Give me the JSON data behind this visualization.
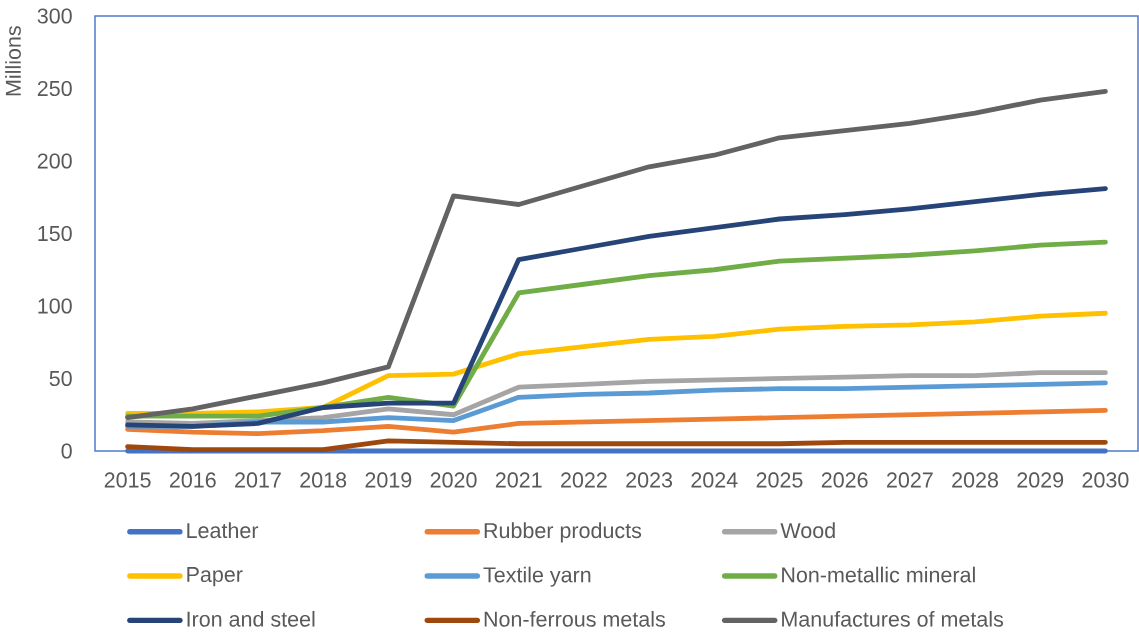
{
  "chart_data": {
    "type": "line",
    "ylabel": "Millions",
    "categories": [
      "2015",
      "2016",
      "2017",
      "2018",
      "2019",
      "2020",
      "2021",
      "2022",
      "2023",
      "2024",
      "2025",
      "2026",
      "2027",
      "2028",
      "2029",
      "2030"
    ],
    "series": [
      {
        "name": "Leather",
        "color": "#4472c4",
        "values": [
          0,
          0,
          0,
          0,
          0,
          0,
          0,
          0,
          0,
          0,
          0,
          0,
          0,
          0,
          0,
          0
        ]
      },
      {
        "name": "Rubber products",
        "color": "#ed7d31",
        "values": [
          15,
          13,
          12,
          14,
          17,
          13,
          19,
          20,
          21,
          22,
          23,
          24,
          25,
          26,
          27,
          28
        ]
      },
      {
        "name": "Wood",
        "color": "#a5a5a5",
        "values": [
          20,
          19,
          21,
          23,
          29,
          25,
          44,
          46,
          48,
          49,
          50,
          51,
          52,
          52,
          54,
          54
        ]
      },
      {
        "name": "Paper",
        "color": "#ffc000",
        "values": [
          26,
          26,
          27,
          30,
          52,
          53,
          67,
          72,
          77,
          79,
          84,
          86,
          87,
          89,
          93,
          95
        ]
      },
      {
        "name": "Textile yarn",
        "color": "#5b9bd5",
        "values": [
          17,
          17,
          20,
          20,
          23,
          21,
          37,
          39,
          40,
          42,
          43,
          43,
          44,
          45,
          46,
          47
        ]
      },
      {
        "name": "Non-metallic mineral",
        "color": "#70ad47",
        "values": [
          24,
          24,
          24,
          30,
          37,
          31,
          109,
          115,
          121,
          125,
          131,
          133,
          135,
          138,
          142,
          144
        ]
      },
      {
        "name": "Iron and steel",
        "color": "#264478",
        "values": [
          18,
          17,
          19,
          30,
          33,
          33,
          132,
          140,
          148,
          154,
          160,
          163,
          167,
          172,
          177,
          181
        ]
      },
      {
        "name": "Non-ferrous metals",
        "color": "#9e480e",
        "values": [
          3,
          1,
          1,
          1,
          7,
          6,
          5,
          5,
          5,
          5,
          5,
          6,
          6,
          6,
          6,
          6
        ]
      },
      {
        "name": "Manufactures of metals",
        "color": "#636363",
        "values": [
          23,
          29,
          38,
          47,
          58,
          176,
          170,
          183,
          196,
          204,
          216,
          221,
          226,
          233,
          242,
          248
        ]
      }
    ],
    "ylim": [
      0,
      300
    ],
    "yticks": [
      0,
      50,
      100,
      150,
      200,
      250,
      300
    ],
    "legend": "bottom",
    "line_style": "solid"
  }
}
